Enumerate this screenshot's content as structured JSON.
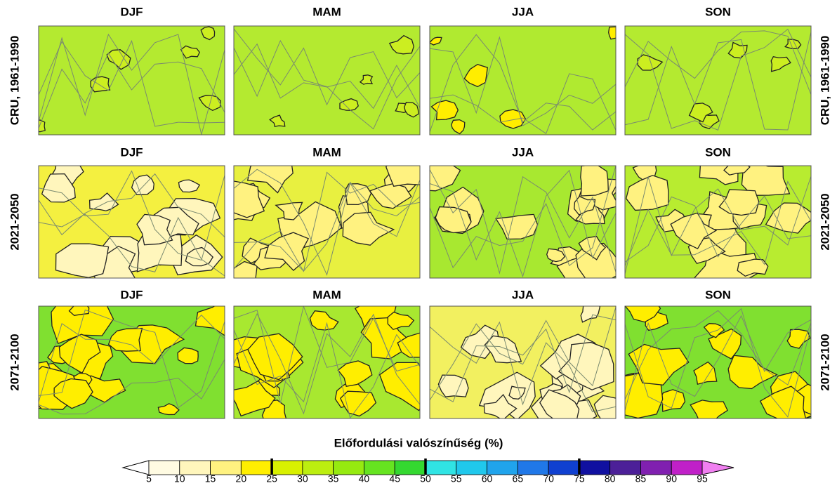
{
  "rows": [
    {
      "label": "CRU, 1961-1990",
      "titles": [
        "DJF",
        "MAM",
        "JJA",
        "SON"
      ]
    },
    {
      "label": "2021-2050",
      "titles": [
        "DJF",
        "MAM",
        "JJA",
        "SON"
      ]
    },
    {
      "label": "2071-2100",
      "titles": [
        "DJF",
        "MAM",
        "JJA",
        "SON"
      ]
    }
  ],
  "colorbar": {
    "title": "Előfordulási valószínűség (%)",
    "ticks": [
      5,
      10,
      15,
      20,
      25,
      30,
      35,
      40,
      45,
      50,
      55,
      60,
      65,
      70,
      75,
      80,
      85,
      90,
      95
    ],
    "major_ticks": [
      25,
      50,
      75
    ],
    "colors": [
      "#ffffff",
      "#fffbe2",
      "#fff6bc",
      "#fff280",
      "#ffee00",
      "#d8f000",
      "#bcee10",
      "#96ea10",
      "#66e420",
      "#34d830",
      "#30e4e4",
      "#20c8ec",
      "#20a4ec",
      "#2078e8",
      "#1040d0",
      "#1010a0",
      "#4c2098",
      "#8020b0",
      "#c020c8",
      "#f080f0"
    ]
  }
}
